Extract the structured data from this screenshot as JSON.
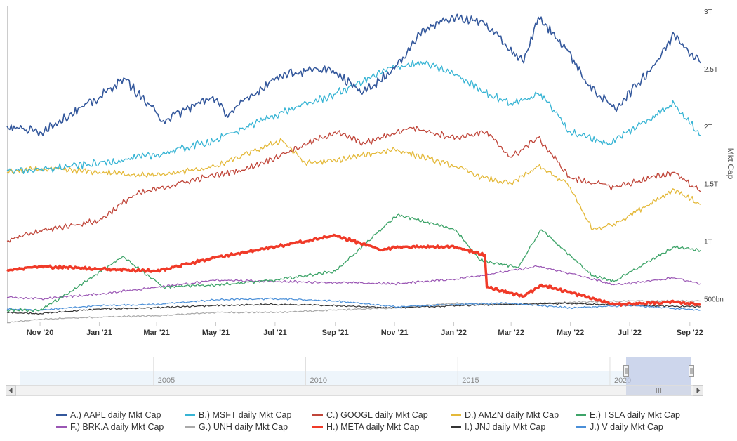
{
  "colors": {
    "A": "#34589c",
    "B": "#37b4d4",
    "C": "#c0463a",
    "D": "#e4b93a",
    "E": "#3ea469",
    "F": "#9a56b4",
    "G": "#a9a9a9",
    "H": "#f03a28",
    "I": "#333333",
    "J": "#4a8fd8"
  },
  "navigator": {
    "year_labels": [
      "2005",
      "2010",
      "2015",
      "2020"
    ],
    "scroll_left_icon": "arrow-left-icon",
    "scroll_right_icon": "arrow-right-icon",
    "grip_glyph": "III"
  },
  "chart_data": {
    "type": "line",
    "ylabel": "Mkt Cap",
    "y_ticks": [
      "500bn",
      "1T",
      "1.5T",
      "2T",
      "2.5T",
      "3T"
    ],
    "y_tick_values": [
      500,
      1000,
      1500,
      2000,
      2500,
      3000
    ],
    "x_tick_labels": [
      "Nov '20",
      "Jan '21",
      "Mar '21",
      "May '21",
      "Jul '21",
      "Sep '21",
      "Nov '21",
      "Jan '22",
      "Mar '22",
      "May '22",
      "Jul '22",
      "Sep '22"
    ],
    "x_tick_dates": [
      "2020-11",
      "2021-01",
      "2021-03",
      "2021-05",
      "2021-07",
      "2021-09",
      "2021-11",
      "2022-01",
      "2022-03",
      "2022-05",
      "2022-07",
      "2022-09"
    ],
    "x_range": [
      "2020-09-28",
      "2022-09-12"
    ],
    "y_range_billions": [
      300,
      3050
    ],
    "grid": false,
    "legend_placement": "bottom",
    "series": [
      {
        "key": "A",
        "name": "A.) AAPL daily Mkt Cap",
        "dates": [
          "2020-09-28",
          "2020-11-01",
          "2021-01-01",
          "2021-01-26",
          "2021-03-08",
          "2021-04-28",
          "2021-05-12",
          "2021-07-06",
          "2021-08-24",
          "2021-09-30",
          "2021-11-01",
          "2021-12-01",
          "2022-01-03",
          "2022-02-01",
          "2022-03-14",
          "2022-03-29",
          "2022-04-29",
          "2022-05-20",
          "2022-06-16",
          "2022-07-28",
          "2022-08-16",
          "2022-09-12"
        ],
        "values": [
          2000,
          1950,
          2250,
          2420,
          2050,
          2260,
          2100,
          2450,
          2500,
          2300,
          2500,
          2850,
          2950,
          2900,
          2550,
          2950,
          2650,
          2350,
          2150,
          2550,
          2800,
          2550
        ],
        "width": 1.6
      },
      {
        "key": "B",
        "name": "B.) MSFT daily Mkt Cap",
        "dates": [
          "2020-09-28",
          "2020-11-01",
          "2021-01-01",
          "2021-03-01",
          "2021-05-01",
          "2021-07-01",
          "2021-09-01",
          "2021-11-01",
          "2021-12-01",
          "2022-01-03",
          "2022-02-01",
          "2022-03-01",
          "2022-04-01",
          "2022-05-01",
          "2022-06-10",
          "2022-08-16",
          "2022-09-12"
        ],
        "values": [
          1620,
          1620,
          1680,
          1750,
          1880,
          2100,
          2280,
          2520,
          2550,
          2450,
          2300,
          2200,
          2280,
          1950,
          1850,
          2200,
          1920
        ],
        "width": 1.3
      },
      {
        "key": "C",
        "name": "C.) GOOGL daily Mkt Cap",
        "dates": [
          "2020-09-28",
          "2020-11-01",
          "2021-01-01",
          "2021-02-05",
          "2021-04-01",
          "2021-06-01",
          "2021-07-01",
          "2021-09-01",
          "2021-10-01",
          "2021-11-18",
          "2022-01-03",
          "2022-02-03",
          "2022-03-01",
          "2022-03-29",
          "2022-05-01",
          "2022-06-15",
          "2022-08-16",
          "2022-09-12"
        ],
        "values": [
          1000,
          1090,
          1180,
          1400,
          1520,
          1630,
          1730,
          1950,
          1850,
          1990,
          1900,
          1950,
          1730,
          1900,
          1550,
          1470,
          1600,
          1430
        ],
        "width": 1.3
      },
      {
        "key": "D",
        "name": "D.) AMZN daily Mkt Cap",
        "dates": [
          "2020-09-28",
          "2020-11-01",
          "2021-01-01",
          "2021-03-01",
          "2021-05-01",
          "2021-07-08",
          "2021-08-01",
          "2021-09-01",
          "2021-11-01",
          "2022-01-03",
          "2022-02-01",
          "2022-03-01",
          "2022-03-29",
          "2022-04-28",
          "2022-05-24",
          "2022-06-15",
          "2022-08-16",
          "2022-09-12"
        ],
        "values": [
          1600,
          1630,
          1600,
          1570,
          1650,
          1880,
          1680,
          1700,
          1800,
          1650,
          1550,
          1500,
          1650,
          1500,
          1100,
          1150,
          1450,
          1320
        ],
        "width": 1.3
      },
      {
        "key": "E",
        "name": "E.) TSLA daily Mkt Cap",
        "dates": [
          "2020-09-28",
          "2020-11-01",
          "2020-12-01",
          "2021-01-25",
          "2021-03-08",
          "2021-05-01",
          "2021-07-01",
          "2021-09-01",
          "2021-11-04",
          "2022-01-03",
          "2022-01-27",
          "2022-03-08",
          "2022-04-01",
          "2022-05-24",
          "2022-06-15",
          "2022-08-16",
          "2022-09-12"
        ],
        "values": [
          400,
          400,
          550,
          870,
          600,
          620,
          660,
          740,
          1230,
          1100,
          840,
          770,
          1100,
          700,
          650,
          950,
          920
        ],
        "width": 1.3
      },
      {
        "key": "F",
        "name": "F.) BRK.A daily Mkt Cap",
        "dates": [
          "2020-09-28",
          "2020-11-01",
          "2021-01-01",
          "2021-03-01",
          "2021-05-01",
          "2021-07-01",
          "2021-09-01",
          "2021-11-01",
          "2022-01-03",
          "2022-03-29",
          "2022-05-01",
          "2022-06-15",
          "2022-08-16",
          "2022-09-12"
        ],
        "values": [
          510,
          500,
          540,
          600,
          660,
          650,
          640,
          630,
          670,
          780,
          720,
          620,
          680,
          630
        ],
        "width": 1.2
      },
      {
        "key": "G",
        "name": "G.) UNH daily Mkt Cap",
        "dates": [
          "2020-09-28",
          "2020-11-01",
          "2021-01-01",
          "2021-03-01",
          "2021-05-01",
          "2021-07-01",
          "2021-09-01",
          "2021-11-01",
          "2022-01-03",
          "2022-03-01",
          "2022-05-01",
          "2022-07-01",
          "2022-09-12"
        ],
        "values": [
          290,
          320,
          340,
          350,
          380,
          380,
          400,
          420,
          460,
          450,
          470,
          480,
          480
        ],
        "width": 1.2
      },
      {
        "key": "H",
        "name": "H.) META daily Mkt Cap",
        "dates": [
          "2020-09-28",
          "2020-11-01",
          "2021-01-01",
          "2021-03-01",
          "2021-05-01",
          "2021-07-01",
          "2021-09-01",
          "2021-10-20",
          "2021-11-01",
          "2022-01-03",
          "2022-02-02",
          "2022-02-04",
          "2022-03-14",
          "2022-04-01",
          "2022-04-28",
          "2022-06-15",
          "2022-08-16",
          "2022-09-12"
        ],
        "values": [
          750,
          780,
          760,
          740,
          860,
          950,
          1050,
          920,
          950,
          950,
          880,
          600,
          520,
          620,
          560,
          450,
          470,
          450
        ],
        "width": 3.5
      },
      {
        "key": "I",
        "name": "I.) JNJ daily Mkt Cap",
        "dates": [
          "2020-09-28",
          "2020-11-01",
          "2021-01-01",
          "2021-03-01",
          "2021-05-01",
          "2021-07-01",
          "2021-09-01",
          "2021-11-01",
          "2022-01-03",
          "2022-03-01",
          "2022-05-01",
          "2022-07-01",
          "2022-09-12"
        ],
        "values": [
          380,
          370,
          410,
          420,
          440,
          450,
          440,
          420,
          440,
          450,
          460,
          440,
          430
        ],
        "width": 1.2
      },
      {
        "key": "J",
        "name": "J.) V daily Mkt Cap",
        "dates": [
          "2020-09-28",
          "2020-11-01",
          "2021-01-01",
          "2021-03-01",
          "2021-05-01",
          "2021-07-01",
          "2021-09-01",
          "2021-11-01",
          "2022-01-03",
          "2022-03-01",
          "2022-05-01",
          "2022-07-01",
          "2022-09-12"
        ],
        "values": [
          410,
          400,
          440,
          450,
          490,
          500,
          480,
          430,
          450,
          460,
          420,
          440,
          400
        ],
        "width": 1.2
      }
    ]
  }
}
